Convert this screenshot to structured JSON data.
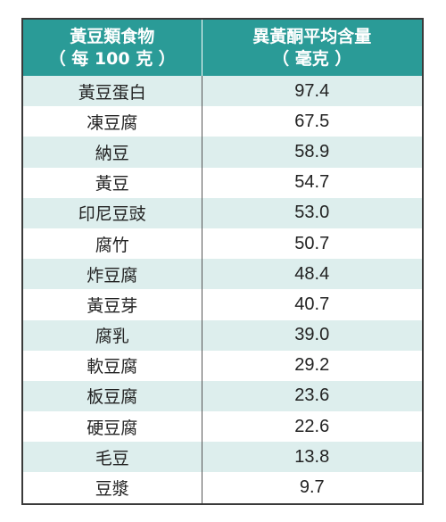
{
  "header": {
    "col1_line1": "黃豆類食物",
    "col1_line2": "（ 每 100 克 ）",
    "col2_line1": "異黃酮平均含量",
    "col2_line2": "（ 毫克 ）"
  },
  "rows": [
    {
      "food": "黃豆蛋白",
      "value": "97.4"
    },
    {
      "food": "凍豆腐",
      "value": "67.5"
    },
    {
      "food": "納豆",
      "value": "58.9"
    },
    {
      "food": "黃豆",
      "value": "54.7"
    },
    {
      "food": "印尼豆豉",
      "value": "53.0"
    },
    {
      "food": "腐竹",
      "value": "50.7"
    },
    {
      "food": "炸豆腐",
      "value": "48.4"
    },
    {
      "food": "黃豆芽",
      "value": "40.7"
    },
    {
      "food": "腐乳",
      "value": "39.0"
    },
    {
      "food": "軟豆腐",
      "value": "29.2"
    },
    {
      "food": "板豆腐",
      "value": "23.6"
    },
    {
      "food": "硬豆腐",
      "value": "22.6"
    },
    {
      "food": "毛豆",
      "value": "13.8"
    },
    {
      "food": "豆漿",
      "value": "9.7"
    }
  ],
  "colors": {
    "header_bg": "#2a9b97",
    "row_stripe": "#ddeeed"
  }
}
